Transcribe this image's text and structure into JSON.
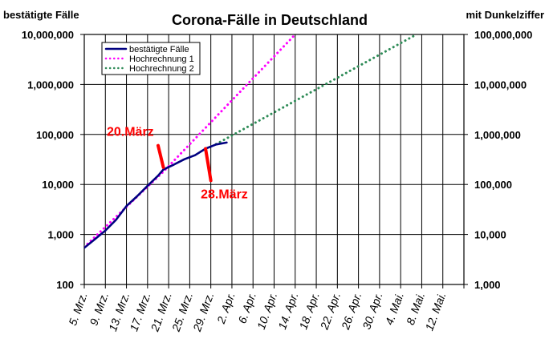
{
  "chart_data": {
    "type": "line",
    "title": "Corona-Fälle in Deutschland",
    "y_left_label": "bestätigte Fälle",
    "y_right_label": "mit Dunkelziffer",
    "y_scale": "log",
    "ylim": [
      100,
      10000000
    ],
    "y_left_ticks": [
      "100",
      "1,000",
      "10,000",
      "100,000",
      "1,000,000",
      "10,000,000"
    ],
    "y_right_ticks": [
      "1,000",
      "10,000",
      "100,000",
      "1,000,000",
      "10,000,000",
      "100,000,000"
    ],
    "x_start_date": "2020-03-05",
    "x_end_date": "2020-05-16",
    "x_tick_dates": [
      "2020-03-05",
      "2020-03-09",
      "2020-03-13",
      "2020-03-17",
      "2020-03-21",
      "2020-03-25",
      "2020-03-29",
      "2020-04-02",
      "2020-04-06",
      "2020-04-10",
      "2020-04-14",
      "2020-04-18",
      "2020-04-22",
      "2020-04-26",
      "2020-04-30",
      "2020-05-04",
      "2020-05-08",
      "2020-05-12",
      "2020-05-16"
    ],
    "x_tick_labels": [
      "5. Mrz.",
      "9. Mrz.",
      "13. Mrz.",
      "17. Mrz.",
      "21. Mrz.",
      "25. Mrz.",
      "29. Mrz.",
      "2. Apr.",
      "6. Apr.",
      "10. Apr.",
      "14. Apr.",
      "18. Apr.",
      "22. Apr.",
      "26. Apr.",
      "30. Apr.",
      "4. Mai.",
      "8. Mai.",
      "12. Mai.",
      ""
    ],
    "legend_position": "top-left",
    "grid": true,
    "series": [
      {
        "name": "bestätigte Fälle",
        "color": "#000080",
        "style": "solid",
        "points": [
          {
            "x": "2020-03-05",
            "y": 540
          },
          {
            "x": "2020-03-07",
            "y": 800
          },
          {
            "x": "2020-03-09",
            "y": 1200
          },
          {
            "x": "2020-03-11",
            "y": 1950
          },
          {
            "x": "2020-03-13",
            "y": 3700
          },
          {
            "x": "2020-03-15",
            "y": 5800
          },
          {
            "x": "2020-03-17",
            "y": 9400
          },
          {
            "x": "2020-03-19",
            "y": 15000
          },
          {
            "x": "2020-03-20",
            "y": 19900
          },
          {
            "x": "2020-03-22",
            "y": 25000
          },
          {
            "x": "2020-03-24",
            "y": 32000
          },
          {
            "x": "2020-03-26",
            "y": 38500
          },
          {
            "x": "2020-03-28",
            "y": 52000
          },
          {
            "x": "2020-03-30",
            "y": 63000
          },
          {
            "x": "2020-04-01",
            "y": 69000
          }
        ]
      },
      {
        "name": "Hochrechnung 1",
        "color": "#ff00ff",
        "style": "dotted",
        "points": [
          {
            "x": "2020-03-05",
            "y": 560
          },
          {
            "x": "2020-03-20",
            "y": 18000
          },
          {
            "x": "2020-04-14",
            "y": 10000000
          }
        ]
      },
      {
        "name": "Hochrechnung 2",
        "color": "#2e8b57",
        "style": "dotted",
        "points": [
          {
            "x": "2020-03-30",
            "y": 64000
          },
          {
            "x": "2020-05-07",
            "y": 10000000
          }
        ]
      }
    ],
    "annotations": [
      {
        "text": "20.März",
        "color": "#ff0000",
        "from": {
          "x": "2020-03-19",
          "y": 60000
        },
        "to": {
          "x": "2020-03-20",
          "y": 22000
        }
      },
      {
        "text": "28.März",
        "color": "#ff0000",
        "from": {
          "x": "2020-03-28",
          "y": 52000
        },
        "to": {
          "x": "2020-03-29",
          "y": 12000
        }
      }
    ]
  }
}
